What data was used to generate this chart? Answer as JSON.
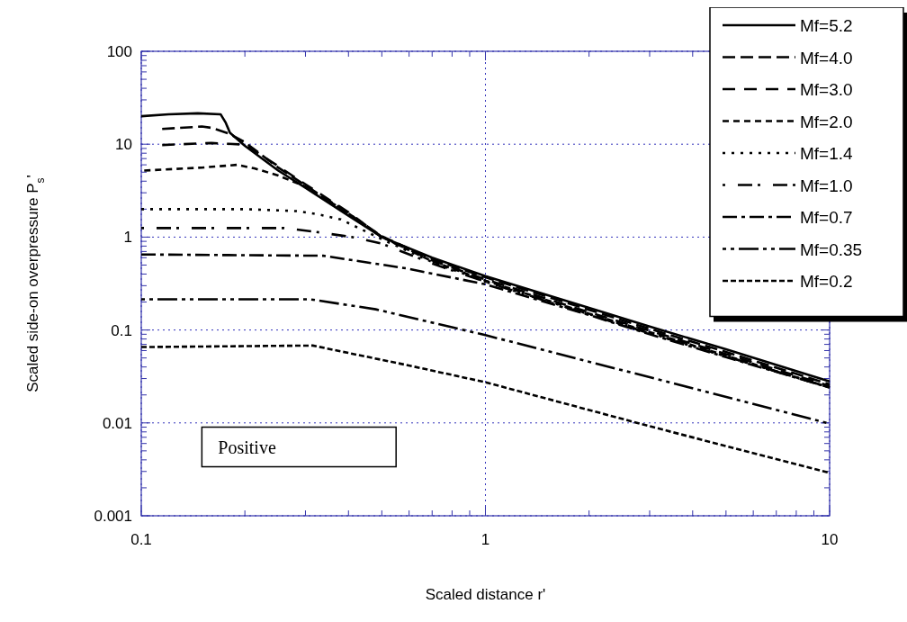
{
  "chart_data": {
    "type": "line",
    "xlabel": "Scaled distance r'",
    "ylabel": "Scaled side-on overpressure P$_{s}$'",
    "log": "xy",
    "grid": true,
    "legend": "top right",
    "xlim": [
      0.1,
      10
    ],
    "ylim": [
      0.001,
      100
    ],
    "xticks": [
      0.1,
      {
        "value": 0.2,
        "label": null
      },
      {
        "value": 0.3,
        "label": null
      },
      {
        "value": 0.4,
        "label": null
      },
      {
        "value": 0.5,
        "label": null
      },
      {
        "value": 0.6,
        "label": null
      },
      {
        "value": 0.7,
        "label": null
      },
      {
        "value": 0.8,
        "label": null
      },
      {
        "value": 0.9,
        "label": null
      },
      1,
      {
        "value": 2,
        "label": null
      },
      {
        "value": 3,
        "label": null
      },
      {
        "value": 4,
        "label": null
      },
      {
        "value": 5,
        "label": null
      },
      {
        "value": 6,
        "label": null
      },
      {
        "value": 7,
        "label": null
      },
      {
        "value": 8,
        "label": null
      },
      {
        "value": 9,
        "label": null
      },
      10
    ],
    "yticks": [
      0.001,
      {
        "value": 0.002,
        "label": null
      },
      {
        "value": 0.003,
        "label": null
      },
      {
        "value": 0.004,
        "label": null
      },
      {
        "value": 0.005,
        "label": null
      },
      {
        "value": 0.006,
        "label": null
      },
      {
        "value": 0.007,
        "label": null
      },
      {
        "value": 0.008,
        "label": null
      },
      {
        "value": 0.009,
        "label": null
      },
      0.01,
      {
        "value": 0.02,
        "label": null
      },
      {
        "value": 0.03,
        "label": null
      },
      {
        "value": 0.04,
        "label": null
      },
      {
        "value": 0.05,
        "label": null
      },
      {
        "value": 0.06,
        "label": null
      },
      {
        "value": 0.07,
        "label": null
      },
      {
        "value": 0.08,
        "label": null
      },
      {
        "value": 0.09,
        "label": null
      },
      0.1,
      {
        "value": 0.2,
        "label": null
      },
      {
        "value": 0.3,
        "label": null
      },
      {
        "value": 0.4,
        "label": null
      },
      {
        "value": 0.5,
        "label": null
      },
      {
        "value": 0.6,
        "label": null
      },
      {
        "value": 0.7,
        "label": null
      },
      {
        "value": 0.8,
        "label": null
      },
      {
        "value": 0.9,
        "label": null
      },
      1,
      {
        "value": 2,
        "label": null
      },
      {
        "value": 3,
        "label": null
      },
      {
        "value": 4,
        "label": null
      },
      {
        "value": 5,
        "label": null
      },
      {
        "value": 6,
        "label": null
      },
      {
        "value": 7,
        "label": null
      },
      {
        "value": 8,
        "label": null
      },
      {
        "value": 9,
        "label": null
      },
      10,
      {
        "value": 20,
        "label": null
      },
      {
        "value": 30,
        "label": null
      },
      {
        "value": 40,
        "label": null
      },
      {
        "value": 50,
        "label": null
      },
      {
        "value": 60,
        "label": null
      },
      {
        "value": 70,
        "label": null
      },
      {
        "value": 80,
        "label": null
      },
      {
        "value": 90,
        "label": null
      },
      100
    ],
    "annotations": [
      "Positive"
    ],
    "series": [
      {
        "name": "Mf=5.2",
        "color": "#000000",
        "line_style": "solid",
        "x": [
          0.1,
          0.12,
          0.146,
          0.17,
          0.176,
          0.181,
          0.2,
          0.25,
          0.3,
          0.4,
          0.5,
          0.7,
          1,
          2,
          3,
          5,
          10
        ],
        "values": [
          20,
          21,
          21.5,
          21,
          17,
          13.3,
          9.6,
          5.2,
          3.4,
          1.7,
          1.0,
          0.6,
          0.38,
          0.173,
          0.109,
          0.062,
          0.028
        ]
      },
      {
        "name": "Mf=4.0",
        "color": "#000000",
        "line_style": "dashed",
        "x": [
          0.115,
          0.15,
          0.16,
          0.18,
          0.2,
          0.25,
          0.3,
          0.4,
          0.5,
          0.7,
          1,
          2,
          3,
          5,
          10
        ],
        "values": [
          14.6,
          15.5,
          15,
          13,
          10.5,
          5.6,
          3.6,
          1.8,
          1.02,
          0.58,
          0.37,
          0.165,
          0.103,
          0.058,
          0.026
        ]
      },
      {
        "name": "Mf=3.0",
        "color": "#000000",
        "line_style": "dashed",
        "x": [
          0.115,
          0.16,
          0.2,
          0.25,
          0.3,
          0.4,
          0.5,
          0.7,
          1,
          2,
          3,
          5,
          10
        ],
        "values": [
          9.8,
          10.3,
          9.9,
          5.8,
          3.7,
          1.85,
          1.0,
          0.56,
          0.35,
          0.155,
          0.098,
          0.055,
          0.025
        ]
      },
      {
        "name": "Mf=2.0",
        "color": "#000000",
        "line_style": "dashed",
        "x": [
          0.102,
          0.15,
          0.19,
          0.213,
          0.25,
          0.3,
          0.4,
          0.5,
          0.7,
          1,
          2,
          3,
          5,
          10
        ],
        "values": [
          5.2,
          5.6,
          6.0,
          5.5,
          4.6,
          3.5,
          1.8,
          1.0,
          0.55,
          0.34,
          0.15,
          0.095,
          0.053,
          0.024
        ]
      },
      {
        "name": "Mf=1.4",
        "color": "#000000",
        "line_style": "dotted",
        "x": [
          0.1,
          0.2,
          0.287,
          0.328,
          0.38,
          0.5,
          0.7,
          1,
          2,
          3,
          5,
          10
        ],
        "values": [
          2.0,
          2.0,
          1.9,
          1.75,
          1.55,
          0.95,
          0.54,
          0.33,
          0.148,
          0.093,
          0.052,
          0.024
        ]
      },
      {
        "name": "Mf=1.0",
        "color": "#000000",
        "line_style": "dashed",
        "x": [
          0.1,
          0.26,
          0.315,
          0.41,
          0.5,
          0.7,
          1,
          2,
          3,
          5,
          10
        ],
        "values": [
          1.25,
          1.25,
          1.15,
          1.0,
          0.85,
          0.52,
          0.33,
          0.146,
          0.092,
          0.052,
          0.024
        ]
      },
      {
        "name": "Mf=0.7",
        "color": "#000000",
        "line_style": "dashed",
        "x": [
          0.1,
          0.338,
          0.59,
          1,
          2,
          3,
          5,
          10
        ],
        "values": [
          0.65,
          0.63,
          0.46,
          0.31,
          0.145,
          0.09,
          0.051,
          0.024
        ]
      },
      {
        "name": "Mf=0.35",
        "color": "#000000",
        "line_style": "dashed",
        "x": [
          0.1,
          0.31,
          0.48,
          1,
          3,
          10
        ],
        "values": [
          0.214,
          0.214,
          0.167,
          0.088,
          0.031,
          0.0098
        ]
      },
      {
        "name": "Mf=0.2",
        "color": "#000000",
        "line_style": "dashed",
        "x": [
          0.1,
          0.315,
          0.59,
          1,
          3,
          10
        ],
        "values": [
          0.0655,
          0.068,
          0.042,
          0.0274,
          0.0092,
          0.0029
        ]
      }
    ]
  }
}
